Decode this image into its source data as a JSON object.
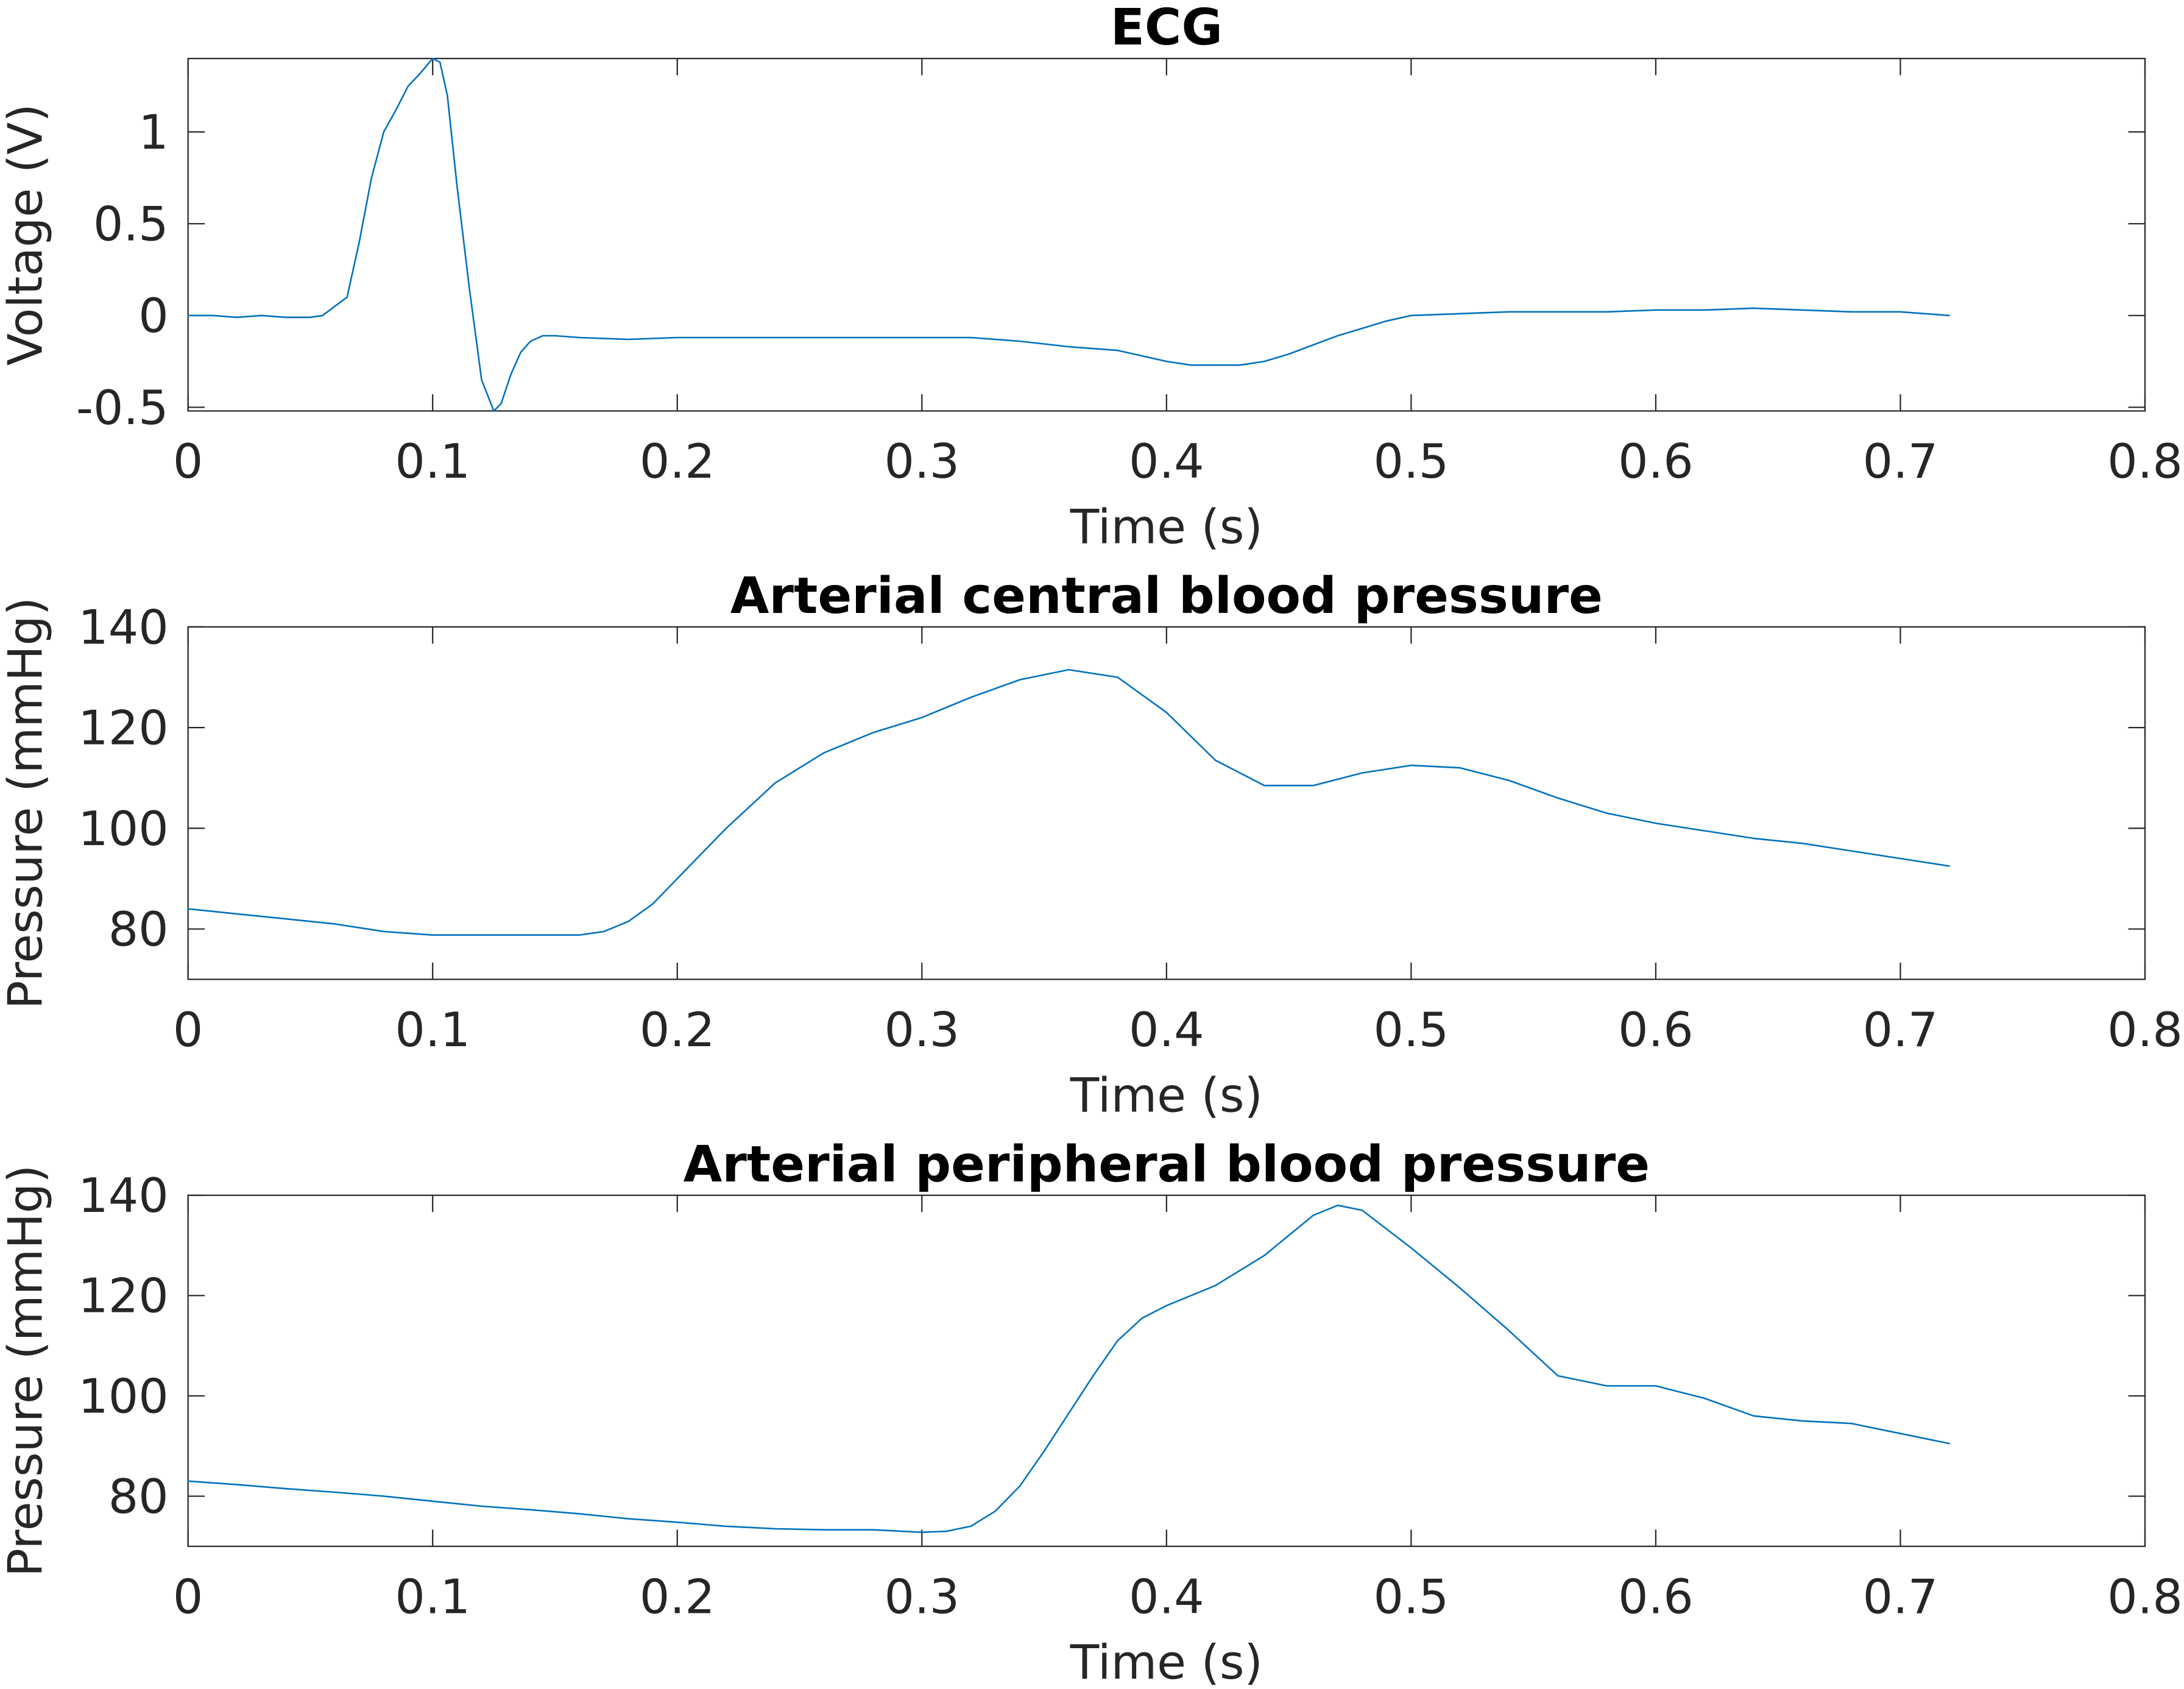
{
  "chart_data": [
    {
      "type": "line",
      "title": "ECG",
      "xlabel": "Time (s)",
      "ylabel": "Voltage (V)",
      "xlim": [
        0,
        0.8
      ],
      "ylim": [
        -0.52,
        1.4
      ],
      "xticks": [
        "0",
        "0.1",
        "0.2",
        "0.3",
        "0.4",
        "0.5",
        "0.6",
        "0.7",
        "0.8"
      ],
      "yticks": [
        "-0.5",
        "0",
        "0.5",
        "1"
      ],
      "grid": false,
      "color": "#0072BD",
      "series": [
        {
          "x": [
            0,
            0.01,
            0.02,
            0.03,
            0.04,
            0.05,
            0.055,
            0.06,
            0.065,
            0.07,
            0.075,
            0.08,
            0.085,
            0.09,
            0.095,
            0.1,
            0.103,
            0.106,
            0.11,
            0.115,
            0.12,
            0.125,
            0.128,
            0.132,
            0.136,
            0.14,
            0.145,
            0.15,
            0.16,
            0.18,
            0.2,
            0.22,
            0.24,
            0.26,
            0.28,
            0.3,
            0.32,
            0.34,
            0.36,
            0.38,
            0.39,
            0.4,
            0.41,
            0.42,
            0.43,
            0.44,
            0.45,
            0.46,
            0.47,
            0.48,
            0.49,
            0.5,
            0.52,
            0.54,
            0.56,
            0.58,
            0.6,
            0.62,
            0.64,
            0.66,
            0.68,
            0.7,
            0.72
          ],
          "y": [
            0.0,
            0.0,
            -0.01,
            0.0,
            -0.01,
            -0.01,
            0.0,
            0.05,
            0.1,
            0.4,
            0.75,
            1.0,
            1.12,
            1.25,
            1.32,
            1.4,
            1.38,
            1.2,
            0.7,
            0.15,
            -0.35,
            -0.52,
            -0.48,
            -0.32,
            -0.2,
            -0.14,
            -0.11,
            -0.11,
            -0.12,
            -0.13,
            -0.12,
            -0.12,
            -0.12,
            -0.12,
            -0.12,
            -0.12,
            -0.12,
            -0.14,
            -0.17,
            -0.19,
            -0.22,
            -0.25,
            -0.27,
            -0.27,
            -0.27,
            -0.25,
            -0.21,
            -0.16,
            -0.11,
            -0.07,
            -0.03,
            0.0,
            0.01,
            0.02,
            0.02,
            0.02,
            0.03,
            0.03,
            0.04,
            0.03,
            0.02,
            0.02,
            0.0
          ]
        }
      ]
    },
    {
      "type": "line",
      "title": "Arterial central blood pressure",
      "xlabel": "Time (s)",
      "ylabel": "Pressure (mmHg)",
      "xlim": [
        0,
        0.8
      ],
      "ylim": [
        70,
        140
      ],
      "xticks": [
        "0",
        "0.1",
        "0.2",
        "0.3",
        "0.4",
        "0.5",
        "0.6",
        "0.7",
        "0.8"
      ],
      "yticks": [
        "80",
        "100",
        "120",
        "140"
      ],
      "grid": false,
      "color": "#0072BD",
      "series": [
        {
          "x": [
            0,
            0.02,
            0.04,
            0.06,
            0.08,
            0.1,
            0.12,
            0.14,
            0.16,
            0.17,
            0.18,
            0.19,
            0.2,
            0.22,
            0.24,
            0.26,
            0.28,
            0.3,
            0.32,
            0.34,
            0.36,
            0.38,
            0.4,
            0.42,
            0.44,
            0.46,
            0.48,
            0.5,
            0.52,
            0.54,
            0.56,
            0.58,
            0.6,
            0.62,
            0.64,
            0.66,
            0.68,
            0.7,
            0.72
          ],
          "y": [
            84,
            83,
            82,
            81,
            79.5,
            78.8,
            78.8,
            78.8,
            78.8,
            79.5,
            81.5,
            85,
            90,
            100,
            109,
            115,
            119,
            122,
            126,
            129.5,
            131.5,
            130,
            123,
            113.5,
            108.5,
            108.5,
            111,
            112.5,
            112,
            109.5,
            106,
            103,
            101,
            99.5,
            98,
            97,
            95.5,
            94,
            92.5
          ]
        }
      ]
    },
    {
      "type": "line",
      "title": "Arterial peripheral blood pressure",
      "xlabel": "Time (s)",
      "ylabel": "Pressure (mmHg)",
      "xlim": [
        0,
        0.8
      ],
      "ylim": [
        70,
        140
      ],
      "xticks": [
        "0",
        "0.1",
        "0.2",
        "0.3",
        "0.4",
        "0.5",
        "0.6",
        "0.7",
        "0.8"
      ],
      "yticks": [
        "80",
        "100",
        "120",
        "140"
      ],
      "grid": false,
      "color": "#0072BD",
      "series": [
        {
          "x": [
            0,
            0.02,
            0.04,
            0.06,
            0.08,
            0.1,
            0.12,
            0.14,
            0.16,
            0.18,
            0.2,
            0.22,
            0.24,
            0.26,
            0.28,
            0.3,
            0.31,
            0.32,
            0.33,
            0.34,
            0.35,
            0.36,
            0.37,
            0.38,
            0.39,
            0.4,
            0.42,
            0.44,
            0.45,
            0.46,
            0.47,
            0.48,
            0.5,
            0.52,
            0.54,
            0.56,
            0.58,
            0.6,
            0.62,
            0.64,
            0.66,
            0.68,
            0.7,
            0.72
          ],
          "y": [
            83,
            82.3,
            81.5,
            80.8,
            80,
            79,
            78,
            77.3,
            76.5,
            75.5,
            74.8,
            74,
            73.5,
            73.3,
            73.3,
            72.8,
            73,
            74,
            77,
            82,
            89,
            96.5,
            104,
            111,
            115.5,
            118,
            122,
            128,
            132,
            136,
            138,
            137,
            129.5,
            121.5,
            113,
            104,
            102,
            102,
            99.5,
            96,
            95,
            94.5,
            92.5,
            90.5
          ]
        }
      ]
    }
  ]
}
